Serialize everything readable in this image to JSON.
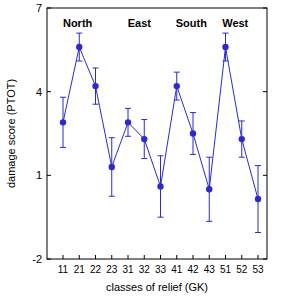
{
  "chart_data": {
    "type": "line",
    "x_label": "classes of relief (GK)",
    "y_label": "damage score (PTOT)",
    "annotations": [
      "North",
      "East",
      "South",
      "West"
    ],
    "categories": [
      "11",
      "21",
      "22",
      "23",
      "31",
      "32",
      "33",
      "41",
      "42",
      "43",
      "51",
      "52",
      "53"
    ],
    "values": [
      2.9,
      5.6,
      4.2,
      1.3,
      2.9,
      2.3,
      0.6,
      4.2,
      2.5,
      0.5,
      5.6,
      2.3,
      0.15
    ],
    "errors": [
      0.9,
      0.5,
      0.65,
      1.05,
      0.5,
      0.7,
      1.1,
      0.5,
      0.75,
      1.15,
      0.5,
      0.65,
      1.2
    ],
    "color": "#2a2ad0",
    "marker": "circle",
    "ylim": [
      -2,
      7
    ],
    "yticks": [
      -2,
      1,
      4,
      7
    ],
    "grid": false
  }
}
